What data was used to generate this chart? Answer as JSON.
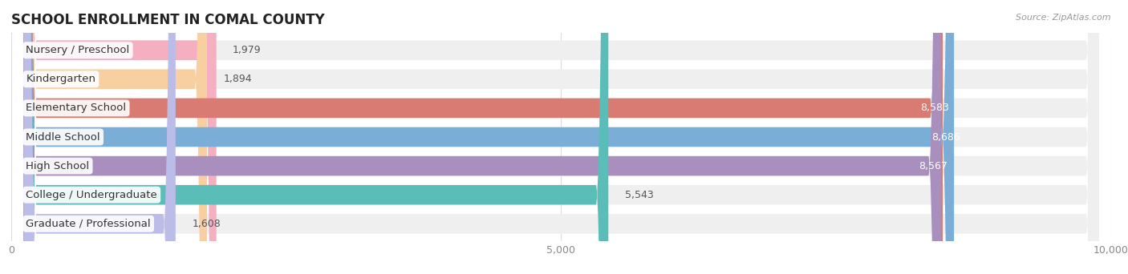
{
  "title": "SCHOOL ENROLLMENT IN COMAL COUNTY",
  "source": "Source: ZipAtlas.com",
  "categories": [
    "Nursery / Preschool",
    "Kindergarten",
    "Elementary School",
    "Middle School",
    "High School",
    "College / Undergraduate",
    "Graduate / Professional"
  ],
  "values": [
    1979,
    1894,
    8583,
    8686,
    8567,
    5543,
    1608
  ],
  "bar_colors": [
    "#f4afc0",
    "#f8cfa0",
    "#d97b72",
    "#7aaed6",
    "#a88fbe",
    "#5bbdb8",
    "#bbbde8"
  ],
  "bar_bg_color": "#efefef",
  "xlim": [
    0,
    10000
  ],
  "xticks": [
    0,
    5000,
    10000
  ],
  "background_color": "#ffffff",
  "title_fontsize": 12,
  "label_fontsize": 9.5,
  "value_fontsize": 9
}
